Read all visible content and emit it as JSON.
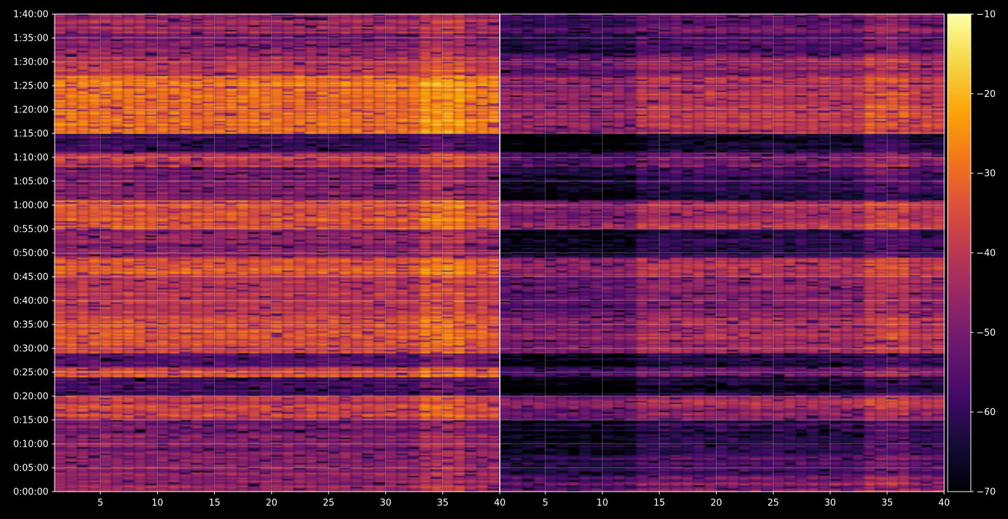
{
  "chart_data": {
    "type": "heatmap",
    "title": "",
    "xlabel": "",
    "ylabel": "",
    "background": "#000000",
    "axis_color": "#ffffff",
    "grid": true,
    "colormap": "inferno",
    "colorbar": {
      "range": [
        -70,
        -10
      ],
      "ticks": [
        -10,
        -20,
        -30,
        -40,
        -50,
        -60,
        -70
      ],
      "tick_labels": [
        "−10",
        "−20",
        "−30",
        "−40",
        "−50",
        "−60",
        "−70"
      ]
    },
    "y_time_range_seconds": [
      0,
      6000
    ],
    "y_ticks": [
      "0:00:00",
      "0:05:00",
      "0:10:00",
      "0:15:00",
      "0:20:00",
      "0:25:00",
      "0:30:00",
      "0:35:00",
      "0:40:00",
      "0:45:00",
      "0:50:00",
      "0:55:00",
      "1:00:00",
      "1:05:00",
      "1:10:00",
      "1:15:00",
      "1:20:00",
      "1:25:00",
      "1:30:00",
      "1:35:00",
      "1:40:00"
    ],
    "panels": [
      {
        "name": "left",
        "x_range": [
          1,
          40
        ],
        "x_ticks": [
          5,
          10,
          15,
          20,
          25,
          30,
          35,
          40
        ],
        "x_tick_labels": [
          "5",
          "10",
          "15",
          "20",
          "25",
          "30",
          "35",
          "40"
        ]
      },
      {
        "name": "right",
        "x_range": [
          1,
          40
        ],
        "x_ticks": [
          5,
          10,
          15,
          20,
          25,
          30,
          35,
          40
        ],
        "x_tick_labels": [
          "5",
          "10",
          "15",
          "20",
          "25",
          "30",
          "35",
          "40"
        ]
      }
    ],
    "row_levels_by_time_band": [
      {
        "t": "0:00:00-0:03:00",
        "left": -45,
        "right": -48
      },
      {
        "t": "0:03:00-0:08:00",
        "left": -48,
        "right": -55
      },
      {
        "t": "0:08:00-0:15:00",
        "left": -50,
        "right": -60
      },
      {
        "t": "0:15:00-0:20:00",
        "left": -38,
        "right": -45
      },
      {
        "t": "0:20:00-0:24:00",
        "left": -58,
        "right": -64
      },
      {
        "t": "0:24:00-0:26:00",
        "left": -35,
        "right": -48
      },
      {
        "t": "0:26:00-0:29:00",
        "left": -55,
        "right": -62
      },
      {
        "t": "0:29:00-0:37:00",
        "left": -36,
        "right": -42
      },
      {
        "t": "0:37:00-0:45:00",
        "left": -40,
        "right": -48
      },
      {
        "t": "0:45:00-0:49:00",
        "left": -32,
        "right": -42
      },
      {
        "t": "0:49:00-0:55:00",
        "left": -48,
        "right": -60
      },
      {
        "t": "0:55:00-1:01:00",
        "left": -33,
        "right": -42
      },
      {
        "t": "1:01:00-1:08:00",
        "left": -50,
        "right": -60
      },
      {
        "t": "1:08:00-1:11:00",
        "left": -40,
        "right": -50
      },
      {
        "t": "1:11:00-1:15:00",
        "left": -58,
        "right": -64
      },
      {
        "t": "1:15:00-1:27:00",
        "left": -30,
        "right": -40
      },
      {
        "t": "1:27:00-1:31:00",
        "left": -40,
        "right": -46
      },
      {
        "t": "1:31:00-1:36:00",
        "left": -48,
        "right": -55
      },
      {
        "t": "1:36:00-1:40:00",
        "left": -44,
        "right": -52
      }
    ]
  }
}
